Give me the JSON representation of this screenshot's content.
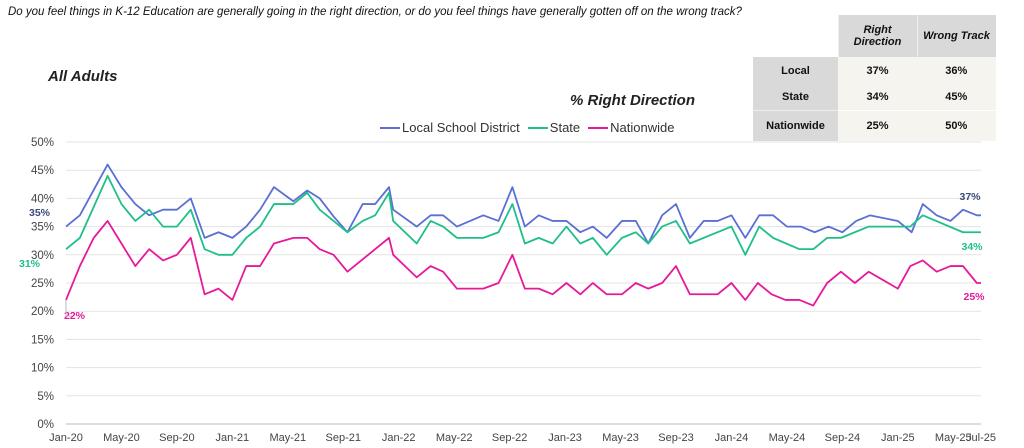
{
  "question": "Do you feel things in K-12 Education are generally going in the right direction, or do you feel things have generally gotten off on the wrong track?",
  "subtitle": "All Adults",
  "table": {
    "headers": [
      "Right Direction",
      "Wrong Track"
    ],
    "rows": [
      {
        "label": "Local",
        "right": "37%",
        "wrong": "36%"
      },
      {
        "label": "State",
        "right": "34%",
        "wrong": "45%"
      },
      {
        "label": "Nationwide",
        "right": "25%",
        "wrong": "50%"
      }
    ]
  },
  "chart_data": {
    "type": "line",
    "title": "% Right Direction",
    "xlabel": "",
    "ylabel": "",
    "ylim": [
      0,
      50
    ],
    "x_unit": "months since Jan-20",
    "yticks": [
      "0%",
      "5%",
      "10%",
      "15%",
      "20%",
      "25%",
      "30%",
      "35%",
      "40%",
      "45%",
      "50%"
    ],
    "xticks": [
      {
        "m": 0,
        "label": "Jan-20"
      },
      {
        "m": 4,
        "label": "May-20"
      },
      {
        "m": 8,
        "label": "Sep-20"
      },
      {
        "m": 12,
        "label": "Jan-21"
      },
      {
        "m": 16,
        "label": "May-21"
      },
      {
        "m": 20,
        "label": "Sep-21"
      },
      {
        "m": 24,
        "label": "Jan-22"
      },
      {
        "m": 28,
        "label": "May-22"
      },
      {
        "m": 32,
        "label": "Sep-22"
      },
      {
        "m": 36,
        "label": "Jan-23"
      },
      {
        "m": 40,
        "label": "May-23"
      },
      {
        "m": 44,
        "label": "Sep-23"
      },
      {
        "m": 48,
        "label": "Jan-24"
      },
      {
        "m": 52,
        "label": "May-24"
      },
      {
        "m": 56,
        "label": "Sep-24"
      },
      {
        "m": 60,
        "label": "Jan-25"
      },
      {
        "m": 64,
        "label": "May-25"
      },
      {
        "m": 66,
        "label": "Jul-25"
      }
    ],
    "legend_position": "top-center",
    "series": [
      {
        "name": "Local School District",
        "color": "#5b6fd4",
        "labelColor": "#3b4a7a",
        "start_label": "35%",
        "end_label": "37%",
        "points": [
          [
            0,
            35
          ],
          [
            1,
            37
          ],
          [
            3,
            46
          ],
          [
            4,
            42
          ],
          [
            5,
            39
          ],
          [
            6,
            37
          ],
          [
            7,
            38
          ],
          [
            8,
            38
          ],
          [
            9,
            40
          ],
          [
            10,
            33
          ],
          [
            11,
            34
          ],
          [
            12,
            33
          ],
          [
            13,
            35
          ],
          [
            14,
            38
          ],
          [
            15,
            42
          ],
          [
            16.4,
            39.5
          ],
          [
            17.4,
            41.4
          ],
          [
            18.3,
            40
          ],
          [
            19.3,
            36.8
          ],
          [
            20.3,
            34
          ],
          [
            21.4,
            39
          ],
          [
            22.3,
            39
          ],
          [
            23.3,
            42
          ],
          [
            23.6,
            38
          ],
          [
            25.3,
            35
          ],
          [
            26.3,
            37
          ],
          [
            27.2,
            37
          ],
          [
            28.2,
            35
          ],
          [
            30.1,
            37
          ],
          [
            31.2,
            36
          ],
          [
            32.2,
            42
          ],
          [
            33.1,
            35
          ],
          [
            34.1,
            37
          ],
          [
            35.1,
            36
          ],
          [
            36.1,
            36
          ],
          [
            37.1,
            34
          ],
          [
            38,
            35
          ],
          [
            39,
            33
          ],
          [
            40.1,
            36
          ],
          [
            41.1,
            36
          ],
          [
            42,
            32
          ],
          [
            43,
            37
          ],
          [
            44,
            39
          ],
          [
            45,
            33
          ],
          [
            46,
            36
          ],
          [
            47,
            36
          ],
          [
            48,
            37
          ],
          [
            49,
            33
          ],
          [
            50,
            37
          ],
          [
            51,
            37
          ],
          [
            52,
            35
          ],
          [
            53,
            35
          ],
          [
            54,
            34
          ],
          [
            55,
            35
          ],
          [
            56,
            34
          ],
          [
            57,
            36
          ],
          [
            58,
            37
          ],
          [
            60,
            36
          ],
          [
            61,
            34
          ],
          [
            61.8,
            39
          ],
          [
            62.8,
            37
          ],
          [
            63.8,
            36
          ],
          [
            64.7,
            38
          ],
          [
            65.7,
            37
          ],
          [
            66,
            37
          ]
        ]
      },
      {
        "name": "State",
        "color": "#1fbf8a",
        "labelColor": "#1fbf8a",
        "start_label": "31%",
        "end_label": "34%",
        "points": [
          [
            0,
            31
          ],
          [
            1,
            33
          ],
          [
            3,
            44
          ],
          [
            4,
            39
          ],
          [
            5,
            36
          ],
          [
            6,
            38
          ],
          [
            7,
            35
          ],
          [
            8,
            35
          ],
          [
            9,
            38
          ],
          [
            10,
            31
          ],
          [
            11,
            30
          ],
          [
            12,
            30
          ],
          [
            13,
            33
          ],
          [
            14,
            35
          ],
          [
            15,
            39
          ],
          [
            16.4,
            39
          ],
          [
            17.4,
            41
          ],
          [
            18.3,
            38
          ],
          [
            19.3,
            36
          ],
          [
            20.3,
            34
          ],
          [
            21.4,
            36
          ],
          [
            22.3,
            37
          ],
          [
            23.3,
            41
          ],
          [
            23.6,
            36
          ],
          [
            25.3,
            32
          ],
          [
            26.3,
            36
          ],
          [
            27.2,
            35
          ],
          [
            28.2,
            33
          ],
          [
            30.1,
            33
          ],
          [
            31.2,
            34
          ],
          [
            32.2,
            39
          ],
          [
            33.1,
            32
          ],
          [
            34.1,
            33
          ],
          [
            35.1,
            32
          ],
          [
            36.1,
            35
          ],
          [
            37.1,
            32
          ],
          [
            38,
            33
          ],
          [
            39,
            30
          ],
          [
            40.1,
            33
          ],
          [
            41.1,
            34
          ],
          [
            42,
            32
          ],
          [
            43,
            35
          ],
          [
            44,
            36
          ],
          [
            45,
            32
          ],
          [
            48,
            35
          ],
          [
            49,
            30
          ],
          [
            50,
            35
          ],
          [
            51,
            33
          ],
          [
            52.9,
            31
          ],
          [
            53.9,
            31
          ],
          [
            54.9,
            33
          ],
          [
            55.9,
            33
          ],
          [
            57.9,
            35
          ],
          [
            60.9,
            35
          ],
          [
            61.8,
            37
          ],
          [
            64.7,
            34
          ],
          [
            66,
            34
          ]
        ]
      },
      {
        "name": "Nationwide",
        "color": "#e6199b",
        "labelColor": "#e6199b",
        "start_label": "22%",
        "end_label": "25%",
        "points": [
          [
            0,
            22
          ],
          [
            1,
            28
          ],
          [
            2,
            33
          ],
          [
            3,
            36
          ],
          [
            4,
            32
          ],
          [
            5,
            28
          ],
          [
            6,
            31
          ],
          [
            7,
            29
          ],
          [
            8,
            30
          ],
          [
            9,
            33
          ],
          [
            10,
            23
          ],
          [
            11,
            24
          ],
          [
            12,
            22
          ],
          [
            13,
            28
          ],
          [
            14,
            28
          ],
          [
            15,
            32
          ],
          [
            16.4,
            33
          ],
          [
            17.4,
            33
          ],
          [
            18.3,
            31
          ],
          [
            19.3,
            30
          ],
          [
            20.3,
            27
          ],
          [
            23.3,
            33
          ],
          [
            23.6,
            30
          ],
          [
            25.3,
            26
          ],
          [
            26.3,
            28
          ],
          [
            27.2,
            27
          ],
          [
            28.2,
            24
          ],
          [
            30.1,
            24
          ],
          [
            31.2,
            25
          ],
          [
            32.2,
            30
          ],
          [
            33.1,
            24
          ],
          [
            34.1,
            24
          ],
          [
            35.1,
            23
          ],
          [
            36.1,
            25
          ],
          [
            37.1,
            23
          ],
          [
            38,
            25
          ],
          [
            39,
            23
          ],
          [
            40.1,
            23
          ],
          [
            41.1,
            25
          ],
          [
            42,
            24
          ],
          [
            43,
            25
          ],
          [
            44,
            28
          ],
          [
            45,
            23
          ],
          [
            47,
            23
          ],
          [
            48,
            25
          ],
          [
            49,
            22
          ],
          [
            49.9,
            25
          ],
          [
            50.9,
            23
          ],
          [
            51.9,
            22
          ],
          [
            52.9,
            22
          ],
          [
            53.9,
            21
          ],
          [
            54.9,
            25
          ],
          [
            55.9,
            27
          ],
          [
            56.9,
            25
          ],
          [
            57.9,
            27
          ],
          [
            60,
            24
          ],
          [
            60.9,
            28
          ],
          [
            61.8,
            29
          ],
          [
            62.8,
            27
          ],
          [
            63.8,
            28
          ],
          [
            64.7,
            28
          ],
          [
            65.7,
            25
          ],
          [
            66,
            25
          ]
        ]
      }
    ]
  }
}
